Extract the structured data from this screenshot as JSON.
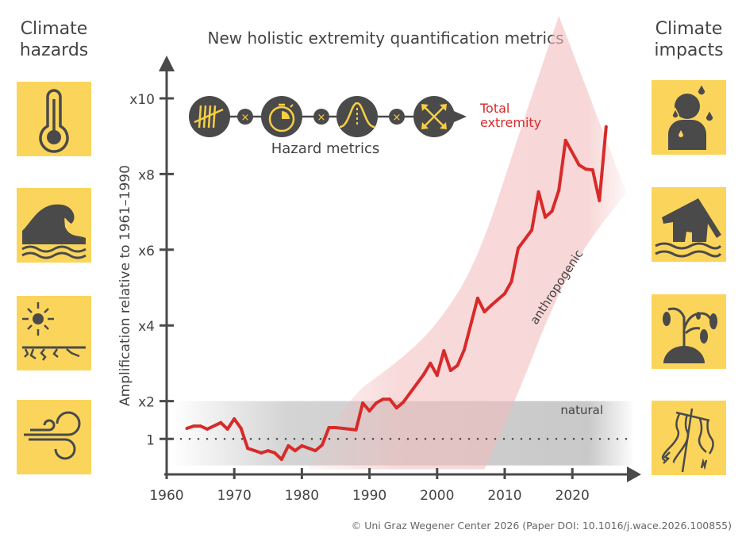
{
  "left_column": {
    "title_line1": "Climate",
    "title_line2": "hazards",
    "icons": [
      "thermometer-icon",
      "wave-icon",
      "drought-icon",
      "wind-icon"
    ]
  },
  "right_column": {
    "title_line1": "Climate",
    "title_line2": "impacts",
    "icons": [
      "sweating-person-icon",
      "flooded-house-icon",
      "wilting-plant-icon",
      "broken-power-line-icon"
    ]
  },
  "colors": {
    "tile": "#FBD55B",
    "icon": "#4a4a4a",
    "line": "#d82a2a",
    "band": "#f2bcbc",
    "natural": "#c9c9c9",
    "metric_glyph": "#f6cf45"
  },
  "hazard_metrics": {
    "label": "Hazard metrics",
    "icons": [
      "frequency-tally-icon",
      "duration-stopwatch-icon",
      "intensity-curve-icon",
      "extent-arrows-icon"
    ],
    "operator": "×",
    "result_line1": "Total",
    "result_line2": "extremity"
  },
  "footer": "© Uni Graz Wegener Center 2026 (Paper DOI: 10.1016/j.wace.2026.100855)",
  "chart_data": {
    "type": "line",
    "title": "New holistic extremity quantification metrics",
    "ylabel": "Amplification relative to 1961–1990",
    "xlabel": "",
    "xlim": [
      1960,
      2027
    ],
    "ylim": [
      0,
      11
    ],
    "xticks": [
      "1960",
      "1970",
      "1980",
      "1990",
      "2000",
      "2010",
      "2020"
    ],
    "yticks": [
      {
        "value": 1,
        "label": "1"
      },
      {
        "value": 2,
        "label": "x2"
      },
      {
        "value": 4,
        "label": "x4"
      },
      {
        "value": 6,
        "label": "x6"
      },
      {
        "value": 8,
        "label": "x8"
      },
      {
        "value": 10,
        "label": "x10"
      }
    ],
    "reference_line": {
      "value": 1,
      "style": "dotted"
    },
    "natural_band": {
      "label": "natural",
      "range": [
        0.3,
        2
      ]
    },
    "anthropogenic_band": {
      "label": "anthropogenic",
      "upper": [
        [
          1981,
          0.2
        ],
        [
          1986,
          2.0
        ],
        [
          1994,
          3.0
        ],
        [
          2000,
          4.0
        ],
        [
          2006,
          5.7
        ],
        [
          2012,
          9.0
        ],
        [
          2018,
          12.3
        ]
      ],
      "lower": [
        [
          2007,
          0.2
        ],
        [
          2012,
          2.2
        ],
        [
          2017,
          4.5
        ],
        [
          2022,
          6.2
        ],
        [
          2028,
          7.5
        ]
      ]
    },
    "series": [
      {
        "points": [
          [
            1963,
            1.28
          ],
          [
            1964,
            1.34
          ],
          [
            1965,
            1.34
          ],
          [
            1966,
            1.26
          ],
          [
            1968,
            1.43
          ],
          [
            1969,
            1.26
          ],
          [
            1970,
            1.53
          ],
          [
            1971,
            1.28
          ],
          [
            1972,
            0.75
          ],
          [
            1974,
            0.63
          ],
          [
            1975,
            0.69
          ],
          [
            1976,
            0.63
          ],
          [
            1977,
            0.46
          ],
          [
            1978,
            0.82
          ],
          [
            1979,
            0.69
          ],
          [
            1980,
            0.82
          ],
          [
            1982,
            0.69
          ],
          [
            1983,
            0.84
          ],
          [
            1984,
            1.3
          ],
          [
            1985,
            1.3
          ],
          [
            1988,
            1.24
          ],
          [
            1989,
            1.95
          ],
          [
            1990,
            1.74
          ],
          [
            1991,
            1.95
          ],
          [
            1992,
            2.05
          ],
          [
            1993,
            2.05
          ],
          [
            1994,
            1.82
          ],
          [
            1995,
            1.97
          ],
          [
            1998,
            2.7
          ],
          [
            1999,
            3.0
          ],
          [
            2000,
            2.68
          ],
          [
            2001,
            3.33
          ],
          [
            2002,
            2.81
          ],
          [
            2003,
            2.94
          ],
          [
            2004,
            3.35
          ],
          [
            2006,
            4.72
          ],
          [
            2007,
            4.36
          ],
          [
            2008,
            4.53
          ],
          [
            2010,
            4.84
          ],
          [
            2011,
            5.16
          ],
          [
            2012,
            6.04
          ],
          [
            2014,
            6.52
          ],
          [
            2015,
            7.53
          ],
          [
            2016,
            6.86
          ],
          [
            2017,
            7.02
          ],
          [
            2018,
            7.57
          ],
          [
            2019,
            8.89
          ],
          [
            2021,
            8.24
          ],
          [
            2022,
            8.13
          ],
          [
            2023,
            8.11
          ],
          [
            2024,
            7.3
          ],
          [
            2025,
            9.25
          ]
        ]
      }
    ]
  }
}
